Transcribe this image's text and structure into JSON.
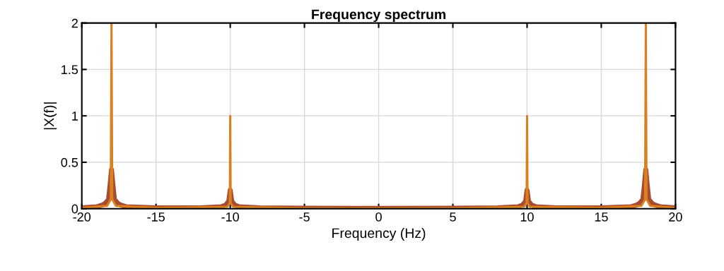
{
  "chart_data": {
    "type": "line",
    "title": "Frequency spectrum",
    "xlabel": "Frequency (Hz)",
    "ylabel": "|X(f)|",
    "xlim": [
      -20,
      20
    ],
    "xticks": [
      -20,
      -15,
      -10,
      -5,
      0,
      5,
      10,
      15,
      20
    ],
    "ylim": [
      0,
      2
    ],
    "yticks": [
      0,
      0.5,
      1,
      1.5,
      2
    ],
    "grid": true,
    "series": [
      {
        "color": "#a94a32",
        "x": [
          -20,
          -19,
          -18.6,
          -18.4,
          -18.2,
          -18.1,
          -18,
          -17.9,
          -17.8,
          -17.6,
          -17.4,
          -17,
          -15,
          -12,
          -10.6,
          -10.3,
          -10.1,
          -10,
          -9.9,
          -9.7,
          -9.4,
          -8,
          -5,
          0,
          5,
          8,
          9.4,
          9.7,
          9.9,
          10,
          10.1,
          10.3,
          10.6,
          12,
          15,
          17,
          17.4,
          17.6,
          17.8,
          17.9,
          18,
          18.1,
          18.2,
          18.4,
          18.6,
          19,
          20
        ],
        "values": [
          0.01,
          0.02,
          0.04,
          0.06,
          0.1,
          0.25,
          0.42,
          0.25,
          0.1,
          0.06,
          0.04,
          0.02,
          0.01,
          0.01,
          0.02,
          0.04,
          0.08,
          0.2,
          0.08,
          0.04,
          0.02,
          0.01,
          0.005,
          0.003,
          0.005,
          0.01,
          0.02,
          0.04,
          0.08,
          0.2,
          0.08,
          0.04,
          0.02,
          0.01,
          0.01,
          0.02,
          0.04,
          0.06,
          0.1,
          0.25,
          0.42,
          0.25,
          0.1,
          0.06,
          0.04,
          0.02,
          0.01
        ]
      },
      {
        "color": "#d9801f",
        "x": [
          -20,
          -18.3,
          -18.05,
          -18,
          -17.95,
          -17.7,
          -15,
          -10.2,
          -10.03,
          -10,
          -9.97,
          -9.8,
          -5,
          0,
          5,
          9.8,
          9.97,
          10,
          10.03,
          10.2,
          15,
          17.7,
          17.95,
          18,
          18.05,
          18.3,
          20
        ],
        "values": [
          0.01,
          0.03,
          0.1,
          2,
          0.1,
          0.03,
          0.01,
          0.02,
          0.06,
          1,
          0.06,
          0.02,
          0.005,
          0.003,
          0.005,
          0.02,
          0.06,
          1,
          0.06,
          0.02,
          0.01,
          0.03,
          0.1,
          2,
          0.1,
          0.03,
          0.01
        ]
      }
    ]
  }
}
